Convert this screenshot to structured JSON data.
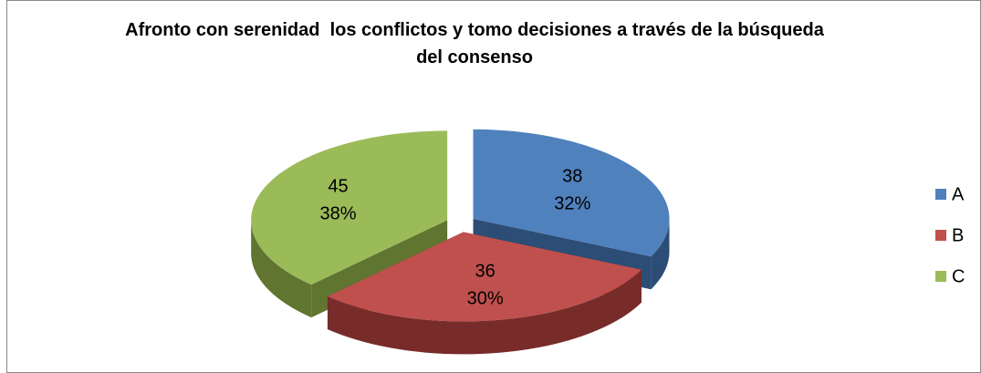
{
  "chart_data": {
    "type": "pie",
    "title": "Afronto con serenidad  los conflictos y tomo decisiones a través de la búsqueda del consenso",
    "categories": [
      "A",
      "B",
      "C"
    ],
    "values": [
      38,
      36,
      45
    ],
    "percent_labels": [
      "32%",
      "30%",
      "38%"
    ],
    "colors": [
      "#4f81bd",
      "#c0504d",
      "#9bbb59"
    ],
    "side_colors": [
      "#2c4d75",
      "#772c2a",
      "#5f7530"
    ],
    "legend": "right"
  }
}
